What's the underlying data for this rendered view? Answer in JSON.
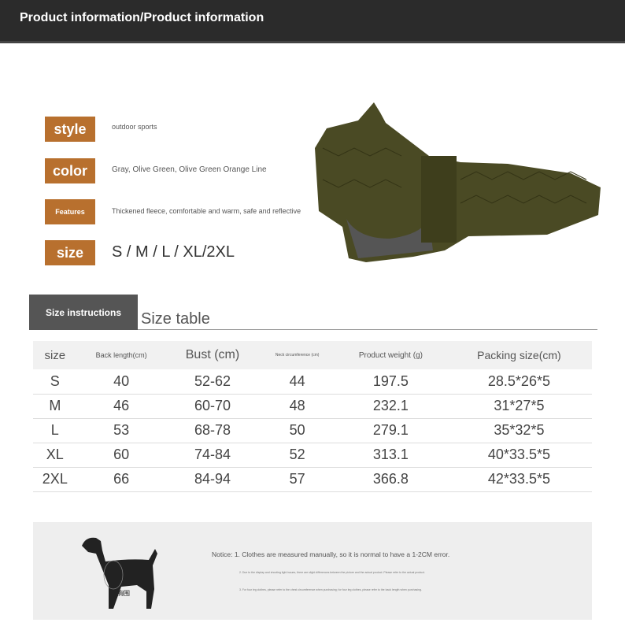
{
  "header": {
    "title": "Product information/Product information"
  },
  "attributes": [
    {
      "label": "style",
      "value": "outdoor sports"
    },
    {
      "label": "color",
      "value": "Gray, Olive Green, Olive Green Orange Line"
    },
    {
      "label": "Features",
      "value": "Thickened fleece, comfortable and warm, safe and reflective"
    },
    {
      "label": "size",
      "value": "S / M / L / XL/2XL"
    }
  ],
  "size_section": {
    "tab": "Size instructions",
    "title": "Size table"
  },
  "table": {
    "headers": [
      "size",
      "Back length(cm)",
      "Bust (cm)",
      "Neck circumference (cm)",
      "Product weight (g)",
      "Packing size(cm)"
    ],
    "rows": [
      [
        "S",
        "40",
        "52-62",
        "44",
        "197.5",
        "28.5*26*5"
      ],
      [
        "M",
        "46",
        "60-70",
        "48",
        "232.1",
        "31*27*5"
      ],
      [
        "L",
        "53",
        "68-78",
        "50",
        "279.1",
        "35*32*5"
      ],
      [
        "XL",
        "60",
        "74-84",
        "52",
        "313.1",
        "40*33.5*5"
      ],
      [
        "2XL",
        "66",
        "84-94",
        "57",
        "366.8",
        "42*33.5*5"
      ]
    ]
  },
  "notice": {
    "line1": "Notice:  1. Clothes are measured manually, so it is normal to have a 1-2CM error.",
    "line2": "2. Due to the display and shooting light issues, there are slight differences between the picture and the actual product. Please refer to the actual product.",
    "line3": "3. For four leg clothes, please refer to the chest circumference when purchasing; for four leg clothes, please refer to the back length when purchasing.",
    "dog_label": "胸围"
  },
  "colors": {
    "tag": "#b8702e",
    "header": "#2b2b2b",
    "coat": "#4a4a24"
  }
}
